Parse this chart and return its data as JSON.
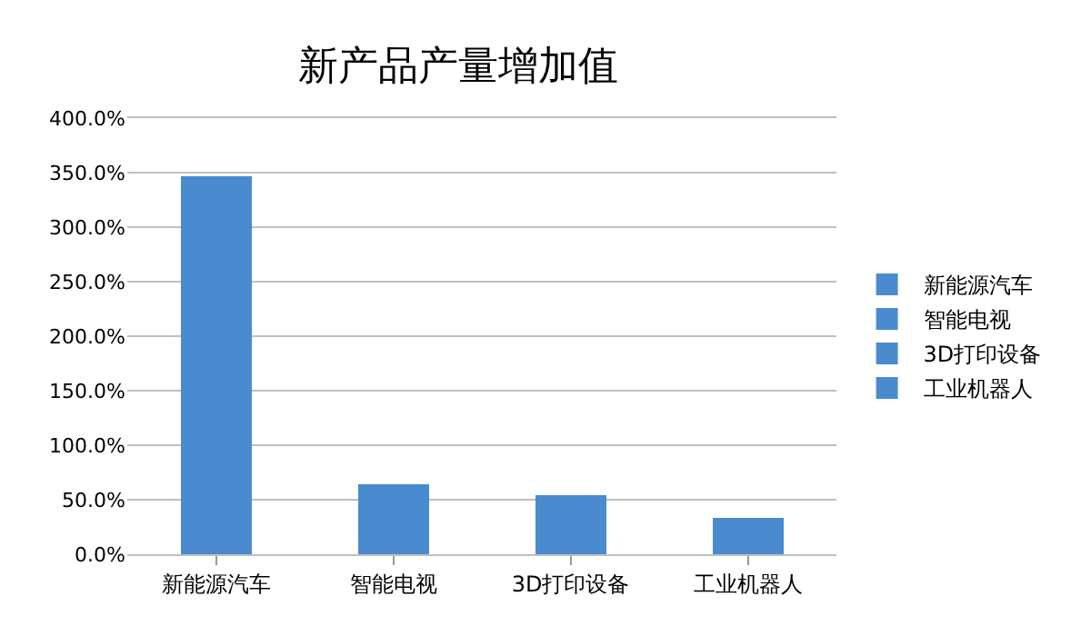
{
  "chart_data": {
    "type": "bar",
    "title": "新产品产量增加值",
    "categories": [
      "新能源汽车",
      "智能电视",
      "3D打印设备",
      "工业机器人"
    ],
    "series": [
      {
        "name": "新能源汽车",
        "color": "#4a8bd0",
        "values": [
          347,
          null,
          null,
          null
        ]
      },
      {
        "name": "智能电视",
        "color": "#4a8bd0",
        "values": [
          null,
          64,
          null,
          null
        ]
      },
      {
        "name": "3D打印设备",
        "color": "#4a8bd0",
        "values": [
          null,
          null,
          54,
          null
        ]
      },
      {
        "name": "工业机器人",
        "color": "#4a8bd0",
        "values": [
          null,
          null,
          null,
          33
        ]
      }
    ],
    "stacked": true,
    "ylim": [
      0,
      400
    ],
    "yticks": [
      {
        "value": 0,
        "label": "0.0%"
      },
      {
        "value": 50,
        "label": "50.0%"
      },
      {
        "value": 100,
        "label": "100.0%"
      },
      {
        "value": 150,
        "label": "150.0%"
      },
      {
        "value": 200,
        "label": "200.0%"
      },
      {
        "value": 250,
        "label": "250.0%"
      },
      {
        "value": 300,
        "label": "300.0%"
      },
      {
        "value": 350,
        "label": "350.0%"
      },
      {
        "value": 400,
        "label": "400.0%"
      }
    ],
    "grid": "y",
    "legend": "right"
  }
}
